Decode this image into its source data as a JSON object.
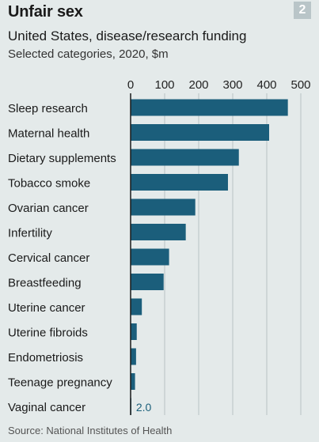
{
  "header": {
    "title": "Unfair sex",
    "badge": "2",
    "subtitle": "United States, disease/research funding",
    "subtitle2": "Selected categories, 2020, $m"
  },
  "footer": {
    "source": "Source: National Institutes of Health"
  },
  "colors": {
    "background": "#e4eaea",
    "bar": "#1b5e7b",
    "grid": "#b8c2c4",
    "axis": "#1a1a1a"
  },
  "chart_data": {
    "type": "bar",
    "orientation": "horizontal",
    "categories": [
      "Sleep research",
      "Maternal health",
      "Dietary supplements",
      "Tobacco smoke",
      "Ovarian cancer",
      "Infertility",
      "Cervical cancer",
      "Breastfeeding",
      "Uterine cancer",
      "Uterine fibroids",
      "Endometriosis",
      "Teenage pregnancy",
      "Vaginal cancer"
    ],
    "values": [
      462,
      407,
      318,
      286,
      190,
      162,
      113,
      97,
      33,
      18,
      16,
      13,
      2.0
    ],
    "xlim": [
      0,
      500
    ],
    "xticks": [
      0,
      100,
      200,
      300,
      400,
      500
    ],
    "xtick_labels": [
      "0",
      "100",
      "200",
      "300",
      "400",
      "500"
    ],
    "annotations": [
      {
        "category": "Vaginal cancer",
        "text": "2.0"
      }
    ],
    "axis_position": "top",
    "grid": true
  }
}
